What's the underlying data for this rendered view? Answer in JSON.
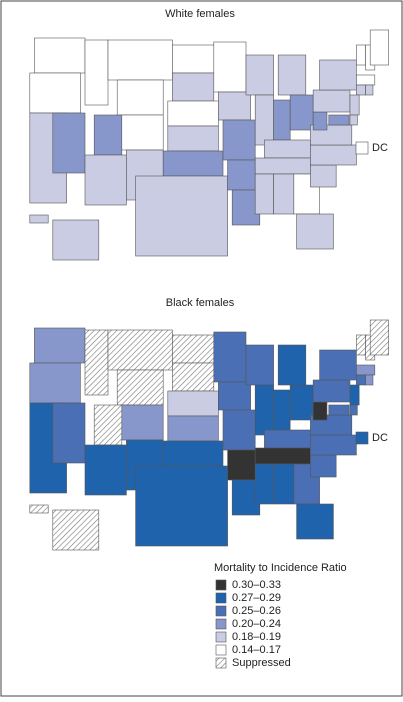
{
  "panels": [
    {
      "title": "White females",
      "dc_label": "DC",
      "fill": [
        5,
        5,
        4,
        3,
        5,
        5,
        5,
        3,
        4,
        5,
        4,
        5,
        4,
        5,
        4,
        3,
        4,
        5,
        4,
        3,
        3,
        3,
        4,
        4,
        4,
        3,
        3,
        4,
        4,
        4,
        4,
        5,
        4,
        4,
        4,
        4,
        3,
        4,
        4,
        5,
        5,
        5,
        5,
        4,
        4,
        4,
        4,
        3,
        4,
        4,
        5
      ]
    },
    {
      "title": "Black females",
      "dc_label": "DC",
      "fill": [
        3,
        3,
        1,
        2,
        6,
        6,
        6,
        6,
        1,
        3,
        1,
        6,
        6,
        4,
        3,
        1,
        1,
        2,
        2,
        2,
        0,
        1,
        2,
        1,
        1,
        1,
        1,
        2,
        0,
        1,
        1,
        2,
        1,
        2,
        2,
        2,
        0,
        2,
        2,
        6,
        6,
        6,
        3,
        2,
        3,
        1,
        2,
        2,
        6,
        6,
        1
      ]
    }
  ],
  "legend": {
    "title": "Mortality to Incidence Ratio",
    "items": [
      {
        "label": "0.30–0.33",
        "color": "#333333"
      },
      {
        "label": "0.27–0.29",
        "color": "#1f63ad"
      },
      {
        "label": "0.25–0.26",
        "color": "#4a6fb5"
      },
      {
        "label": "0.20–0.24",
        "color": "#8797cb"
      },
      {
        "label": "0.18–0.19",
        "color": "#c9cce3"
      },
      {
        "label": "0.14–0.17",
        "color": "#ffffff"
      },
      {
        "label": "Suppressed",
        "color": "url(#hatch)"
      }
    ]
  }
}
